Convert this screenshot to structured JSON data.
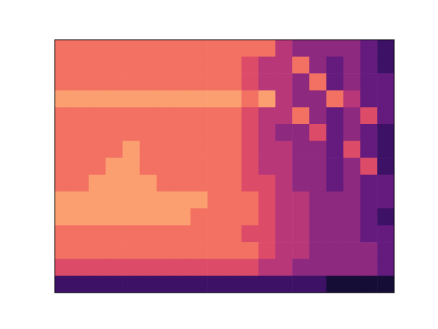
{
  "chart_data": {
    "type": "heatmap",
    "tick_labels": false,
    "color_range": [
      0,
      10
    ],
    "cells": [
      [
        7,
        7,
        7,
        7,
        7,
        7,
        7,
        7,
        7,
        7,
        7,
        7,
        7,
        5,
        4,
        4,
        4,
        4,
        3,
        2
      ],
      [
        7,
        7,
        7,
        7,
        7,
        7,
        7,
        7,
        7,
        7,
        7,
        6,
        5,
        5,
        7,
        4,
        3,
        4,
        3,
        2
      ],
      [
        7,
        7,
        7,
        7,
        7,
        7,
        7,
        7,
        7,
        7,
        7,
        6,
        5,
        5,
        4,
        7,
        3,
        4,
        3,
        3
      ],
      [
        8,
        8,
        8,
        8,
        8,
        8,
        8,
        8,
        8,
        8,
        8,
        7,
        8,
        5,
        4,
        4,
        7,
        5,
        3,
        3
      ],
      [
        7,
        7,
        7,
        7,
        7,
        7,
        7,
        7,
        7,
        7,
        7,
        6,
        5,
        5,
        7,
        4,
        3,
        4,
        6,
        3
      ],
      [
        7,
        7,
        7,
        7,
        7,
        7,
        7,
        7,
        7,
        7,
        7,
        6,
        5,
        4,
        4,
        6,
        3,
        4,
        3,
        2
      ],
      [
        7,
        7,
        7,
        7,
        8,
        7,
        7,
        7,
        7,
        7,
        7,
        6,
        5,
        5,
        4,
        4,
        3,
        6,
        3,
        2
      ],
      [
        7,
        7,
        7,
        8,
        8,
        7,
        7,
        7,
        7,
        7,
        7,
        6,
        5,
        5,
        4,
        4,
        3,
        4,
        6,
        2
      ],
      [
        7,
        7,
        8,
        8,
        8,
        8,
        7,
        7,
        7,
        7,
        7,
        6,
        6,
        5,
        4,
        4,
        3,
        4,
        3,
        3
      ],
      [
        8,
        8,
        8,
        8,
        8,
        8,
        8,
        8,
        8,
        7,
        7,
        7,
        6,
        5,
        5,
        4,
        4,
        4,
        3,
        3
      ],
      [
        8,
        8,
        8,
        8,
        8,
        8,
        8,
        8,
        7,
        7,
        7,
        7,
        6,
        5,
        5,
        4,
        4,
        4,
        3,
        2
      ],
      [
        7,
        7,
        7,
        7,
        7,
        7,
        7,
        7,
        7,
        7,
        7,
        6,
        6,
        5,
        5,
        4,
        4,
        4,
        3,
        3
      ],
      [
        7,
        7,
        7,
        7,
        7,
        7,
        7,
        7,
        7,
        7,
        7,
        7,
        6,
        5,
        5,
        4,
        4,
        4,
        4,
        3
      ],
      [
        6,
        6,
        6,
        6,
        6,
        6,
        6,
        6,
        6,
        6,
        6,
        6,
        5,
        5,
        4,
        4,
        4,
        4,
        4,
        3
      ],
      [
        2,
        2,
        2,
        2,
        2,
        2,
        2,
        2,
        2,
        2,
        2,
        2,
        2,
        2,
        2,
        2,
        1,
        1,
        1,
        1
      ]
    ]
  }
}
